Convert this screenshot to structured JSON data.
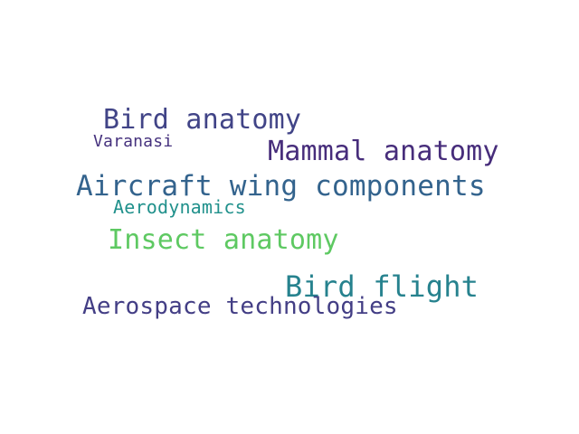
{
  "word_cloud": {
    "words": [
      {
        "text": "Bird anatomy",
        "color": "#414487"
      },
      {
        "text": "Varanasi",
        "color": "#46327e"
      },
      {
        "text": "Mammal anatomy",
        "color": "#472d7b"
      },
      {
        "text": "Aircraft wing components",
        "color": "#33638d"
      },
      {
        "text": "Aerodynamics",
        "color": "#21918c"
      },
      {
        "text": "Insect anatomy",
        "color": "#5ec962"
      },
      {
        "text": "Bird flight",
        "color": "#26828e"
      },
      {
        "text": "Aerospace technologies",
        "color": "#433e85"
      }
    ]
  }
}
